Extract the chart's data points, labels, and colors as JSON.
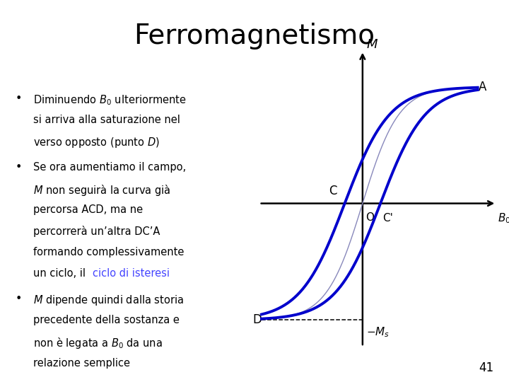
{
  "title": "Ferromagnetismo",
  "title_fontsize": 28,
  "background_color": "#ffffff",
  "curve_color": "#0000CC",
  "text_color": "#000000",
  "link_color": "#4444FF",
  "bullet1_line1": "Diminuendo $B_0$ ulteriormente",
  "bullet1_line2": "si arriva alla saturazione nel",
  "bullet1_line3": "verso opposto (punto $D$)",
  "bullet2_line1": "Se ora aumentiamo il campo,",
  "bullet2_line2": "$M$ non seguirà la curva già",
  "bullet2_line3": "percorsa ACD, ma ne",
  "bullet2_line4": "percorrerà un’altra DC’A",
  "bullet2_line5": "formando complessivamente",
  "bullet2_line6": "un ciclo, il ",
  "bullet2_link": "ciclo di isteresi",
  "bullet3_line1": "$M$ dipende quindi dalla storia",
  "bullet3_line2": "precedente della sostanza e",
  "bullet3_line3": "non è legata a $B_0$ da una",
  "bullet3_line4": "relazione semplice",
  "page_number": "41",
  "label_A": "A",
  "label_C": "C",
  "label_O": "O",
  "label_Cprime": "C'",
  "label_B0": "$B_0$",
  "label_M": "$M$",
  "label_D": "D",
  "label_Ms": "$-M_s$"
}
